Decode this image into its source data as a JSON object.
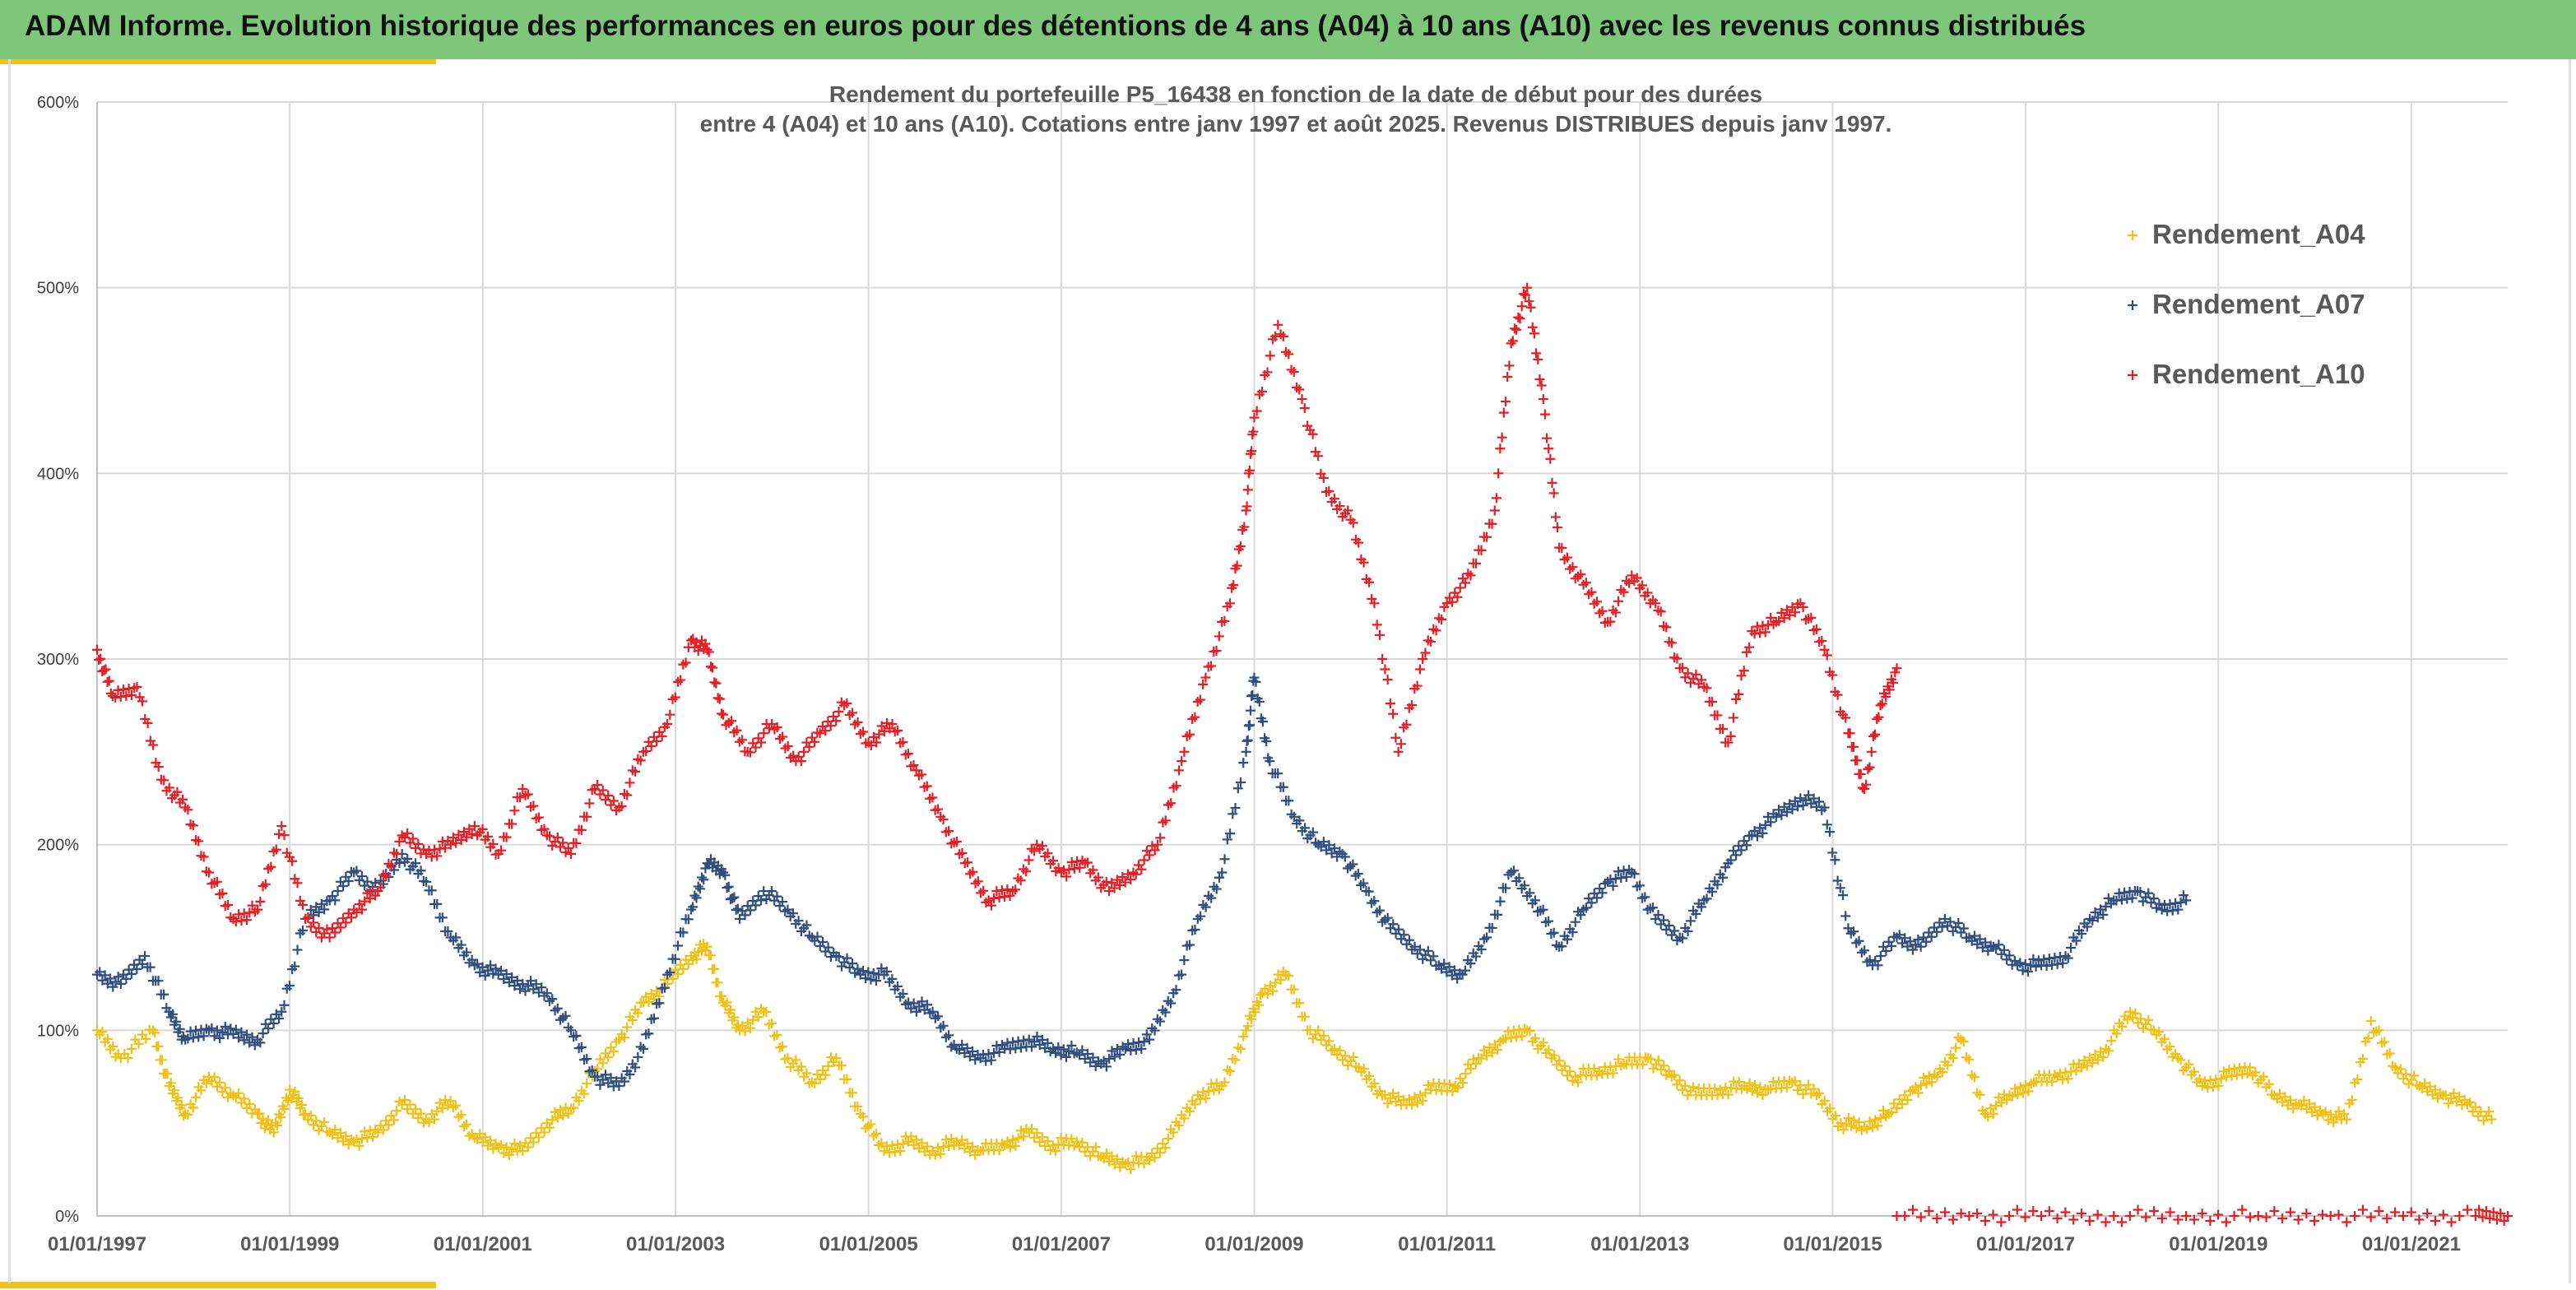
{
  "header": {
    "title": "ADAM Informe. Evolution historique des performances en euros pour des détentions de 4 ans (A04) à 10 ans (A10) avec les revenus connus distribués"
  },
  "colors": {
    "banner": "#7dc67a",
    "accent": "#f2c21c",
    "grid": "#d9d9d9"
  },
  "chart_data": {
    "type": "scatter",
    "title": "Rendement du portefeuille P5_16438 en fonction de la date de début pour des durées",
    "subtitle": "entre 4 (A04) et 10 ans (A10). Cotations entre janv 1997 et août 2025. Revenus DISTRIBUES depuis janv 1997.",
    "xlabel": "",
    "ylabel": "",
    "xlim": [
      "1997-01-01",
      "2022-01-01"
    ],
    "ylim": [
      0,
      600
    ],
    "x_ticks": [
      "01/01/1997",
      "01/01/1999",
      "01/01/2001",
      "01/01/2003",
      "01/01/2005",
      "01/01/2007",
      "01/01/2009",
      "01/01/2011",
      "01/01/2013",
      "01/01/2015",
      "01/01/2017",
      "01/01/2019",
      "01/01/2021"
    ],
    "y_ticks": [
      "0%",
      "100%",
      "200%",
      "300%",
      "400%",
      "500%",
      "600%"
    ],
    "grid": true,
    "legend_position": "top-right",
    "marker": "+",
    "series": [
      {
        "name": "Rendement_A04",
        "color": "#f2bf14",
        "points": [
          [
            "1997-01",
            100
          ],
          [
            "1997-04",
            85
          ],
          [
            "1997-08",
            100
          ],
          [
            "1997-10",
            70
          ],
          [
            "1997-12",
            55
          ],
          [
            "1998-03",
            75
          ],
          [
            "1998-06",
            65
          ],
          [
            "1998-09",
            55
          ],
          [
            "1998-11",
            45
          ],
          [
            "1999-01",
            68
          ],
          [
            "1999-03",
            55
          ],
          [
            "1999-06",
            45
          ],
          [
            "1999-09",
            40
          ],
          [
            "1999-12",
            45
          ],
          [
            "2000-03",
            60
          ],
          [
            "2000-06",
            52
          ],
          [
            "2000-09",
            62
          ],
          [
            "2000-12",
            42
          ],
          [
            "2001-03",
            37
          ],
          [
            "2001-06",
            35
          ],
          [
            "2001-09",
            50
          ],
          [
            "2001-12",
            58
          ],
          [
            "2002-03",
            78
          ],
          [
            "2002-06",
            95
          ],
          [
            "2002-09",
            115
          ],
          [
            "2002-12",
            125
          ],
          [
            "2003-03",
            140
          ],
          [
            "2003-05",
            145
          ],
          [
            "2003-07",
            115
          ],
          [
            "2003-09",
            100
          ],
          [
            "2003-12",
            110
          ],
          [
            "2004-03",
            85
          ],
          [
            "2004-06",
            72
          ],
          [
            "2004-09",
            85
          ],
          [
            "2004-12",
            55
          ],
          [
            "2005-03",
            35
          ],
          [
            "2005-06",
            40
          ],
          [
            "2005-09",
            35
          ],
          [
            "2005-12",
            40
          ],
          [
            "2006-03",
            35
          ],
          [
            "2006-06",
            38
          ],
          [
            "2006-09",
            45
          ],
          [
            "2006-12",
            38
          ],
          [
            "2007-03",
            40
          ],
          [
            "2007-06",
            32
          ],
          [
            "2007-09",
            28
          ],
          [
            "2007-12",
            30
          ],
          [
            "2008-03",
            45
          ],
          [
            "2008-06",
            65
          ],
          [
            "2008-09",
            70
          ],
          [
            "2008-12",
            100
          ],
          [
            "2009-02",
            120
          ],
          [
            "2009-05",
            130
          ],
          [
            "2009-08",
            100
          ],
          [
            "2009-11",
            90
          ],
          [
            "2010-02",
            80
          ],
          [
            "2010-05",
            65
          ],
          [
            "2010-08",
            60
          ],
          [
            "2010-11",
            68
          ],
          [
            "2011-02",
            70
          ],
          [
            "2011-05",
            85
          ],
          [
            "2011-08",
            95
          ],
          [
            "2011-11",
            100
          ],
          [
            "2012-02",
            85
          ],
          [
            "2012-05",
            75
          ],
          [
            "2012-08",
            78
          ],
          [
            "2012-11",
            82
          ],
          [
            "2013-02",
            85
          ],
          [
            "2013-05",
            75
          ],
          [
            "2013-08",
            65
          ],
          [
            "2013-11",
            68
          ],
          [
            "2014-02",
            70
          ],
          [
            "2014-05",
            68
          ],
          [
            "2014-08",
            72
          ],
          [
            "2014-11",
            65
          ],
          [
            "2015-02",
            50
          ],
          [
            "2015-05",
            48
          ],
          [
            "2015-08",
            55
          ],
          [
            "2015-11",
            68
          ],
          [
            "2016-02",
            75
          ],
          [
            "2016-05",
            95
          ],
          [
            "2016-08",
            55
          ],
          [
            "2016-11",
            65
          ],
          [
            "2017-02",
            72
          ],
          [
            "2017-05",
            75
          ],
          [
            "2017-08",
            80
          ],
          [
            "2017-11",
            90
          ],
          [
            "2018-02",
            110
          ],
          [
            "2018-05",
            100
          ],
          [
            "2018-08",
            85
          ],
          [
            "2018-11",
            70
          ],
          [
            "2019-02",
            75
          ],
          [
            "2019-05",
            80
          ],
          [
            "2019-08",
            65
          ],
          [
            "2019-11",
            60
          ],
          [
            "2020-02",
            55
          ],
          [
            "2020-05",
            52
          ],
          [
            "2020-08",
            105
          ],
          [
            "2020-11",
            80
          ],
          [
            "2021-02",
            70
          ],
          [
            "2021-05",
            65
          ],
          [
            "2021-08",
            60
          ],
          [
            "2021-11",
            52
          ]
        ]
      },
      {
        "name": "Rendement_A07",
        "color": "#2f4d7e",
        "points": [
          [
            "1997-01",
            130
          ],
          [
            "1997-04",
            125
          ],
          [
            "1997-07",
            140
          ],
          [
            "1997-10",
            110
          ],
          [
            "1997-12",
            95
          ],
          [
            "1998-03",
            100
          ],
          [
            "1998-06",
            98
          ],
          [
            "1998-09",
            95
          ],
          [
            "1998-12",
            110
          ],
          [
            "1999-03",
            160
          ],
          [
            "1999-06",
            170
          ],
          [
            "1999-09",
            185
          ],
          [
            "1999-12",
            175
          ],
          [
            "2000-03",
            195
          ],
          [
            "2000-06",
            180
          ],
          [
            "2000-09",
            150
          ],
          [
            "2000-12",
            135
          ],
          [
            "2001-03",
            130
          ],
          [
            "2001-06",
            125
          ],
          [
            "2001-09",
            120
          ],
          [
            "2001-12",
            100
          ],
          [
            "2002-03",
            75
          ],
          [
            "2002-06",
            70
          ],
          [
            "2002-09",
            90
          ],
          [
            "2002-12",
            130
          ],
          [
            "2003-03",
            165
          ],
          [
            "2003-05",
            190
          ],
          [
            "2003-07",
            185
          ],
          [
            "2003-09",
            160
          ],
          [
            "2003-12",
            175
          ],
          [
            "2004-03",
            165
          ],
          [
            "2004-06",
            150
          ],
          [
            "2004-09",
            140
          ],
          [
            "2004-12",
            130
          ],
          [
            "2005-03",
            130
          ],
          [
            "2005-06",
            115
          ],
          [
            "2005-09",
            110
          ],
          [
            "2005-12",
            90
          ],
          [
            "2006-03",
            85
          ],
          [
            "2006-06",
            90
          ],
          [
            "2006-09",
            95
          ],
          [
            "2006-12",
            90
          ],
          [
            "2007-03",
            88
          ],
          [
            "2007-06",
            82
          ],
          [
            "2007-09",
            90
          ],
          [
            "2007-12",
            95
          ],
          [
            "2008-03",
            120
          ],
          [
            "2008-06",
            160
          ],
          [
            "2008-09",
            185
          ],
          [
            "2008-12",
            250
          ],
          [
            "2009-01",
            290
          ],
          [
            "2009-03",
            245
          ],
          [
            "2009-06",
            215
          ],
          [
            "2009-09",
            200
          ],
          [
            "2009-12",
            195
          ],
          [
            "2010-03",
            175
          ],
          [
            "2010-06",
            155
          ],
          [
            "2010-09",
            145
          ],
          [
            "2010-12",
            135
          ],
          [
            "2011-03",
            130
          ],
          [
            "2011-06",
            150
          ],
          [
            "2011-09",
            185
          ],
          [
            "2011-12",
            170
          ],
          [
            "2012-03",
            145
          ],
          [
            "2012-06",
            165
          ],
          [
            "2012-09",
            180
          ],
          [
            "2012-12",
            185
          ],
          [
            "2013-03",
            160
          ],
          [
            "2013-06",
            150
          ],
          [
            "2013-09",
            170
          ],
          [
            "2013-12",
            190
          ],
          [
            "2014-03",
            205
          ],
          [
            "2014-06",
            215
          ],
          [
            "2014-09",
            225
          ],
          [
            "2014-12",
            220
          ],
          [
            "2015-03",
            155
          ],
          [
            "2015-06",
            135
          ],
          [
            "2015-09",
            150
          ],
          [
            "2015-12",
            145
          ],
          [
            "2016-03",
            160
          ],
          [
            "2016-06",
            150
          ],
          [
            "2016-09",
            145
          ],
          [
            "2016-12",
            135
          ],
          [
            "2017-03",
            135
          ],
          [
            "2017-06",
            140
          ],
          [
            "2017-09",
            160
          ],
          [
            "2017-12",
            170
          ],
          [
            "2018-03",
            175
          ],
          [
            "2018-06",
            165
          ],
          [
            "2018-09",
            170
          ]
        ]
      },
      {
        "name": "Rendement_A10",
        "color": "#e31e24",
        "points": [
          [
            "1997-01",
            305
          ],
          [
            "1997-03",
            280
          ],
          [
            "1997-06",
            285
          ],
          [
            "1997-09",
            235
          ],
          [
            "1997-12",
            220
          ],
          [
            "1998-03",
            185
          ],
          [
            "1998-06",
            160
          ],
          [
            "1998-09",
            165
          ],
          [
            "1998-12",
            210
          ],
          [
            "1999-03",
            160
          ],
          [
            "1999-06",
            150
          ],
          [
            "1999-09",
            165
          ],
          [
            "1999-12",
            175
          ],
          [
            "2000-03",
            205
          ],
          [
            "2000-06",
            195
          ],
          [
            "2000-09",
            200
          ],
          [
            "2000-12",
            210
          ],
          [
            "2001-03",
            195
          ],
          [
            "2001-06",
            230
          ],
          [
            "2001-09",
            205
          ],
          [
            "2001-12",
            195
          ],
          [
            "2002-03",
            230
          ],
          [
            "2002-06",
            220
          ],
          [
            "2002-09",
            250
          ],
          [
            "2002-12",
            265
          ],
          [
            "2003-03",
            310
          ],
          [
            "2003-05",
            305
          ],
          [
            "2003-07",
            270
          ],
          [
            "2003-10",
            250
          ],
          [
            "2004-01",
            265
          ],
          [
            "2004-04",
            245
          ],
          [
            "2004-07",
            260
          ],
          [
            "2004-10",
            275
          ],
          [
            "2005-01",
            255
          ],
          [
            "2005-04",
            265
          ],
          [
            "2005-07",
            240
          ],
          [
            "2005-10",
            215
          ],
          [
            "2006-01",
            190
          ],
          [
            "2006-04",
            170
          ],
          [
            "2006-07",
            175
          ],
          [
            "2006-10",
            200
          ],
          [
            "2007-01",
            185
          ],
          [
            "2007-04",
            190
          ],
          [
            "2007-07",
            175
          ],
          [
            "2007-10",
            185
          ],
          [
            "2008-01",
            200
          ],
          [
            "2008-04",
            245
          ],
          [
            "2008-07",
            290
          ],
          [
            "2008-10",
            330
          ],
          [
            "2008-12",
            380
          ],
          [
            "2009-01",
            430
          ],
          [
            "2009-04",
            480
          ],
          [
            "2009-07",
            440
          ],
          [
            "2009-10",
            390
          ],
          [
            "2010-01",
            375
          ],
          [
            "2010-04",
            330
          ],
          [
            "2010-07",
            250
          ],
          [
            "2010-10",
            300
          ],
          [
            "2011-01",
            330
          ],
          [
            "2011-04",
            345
          ],
          [
            "2011-07",
            380
          ],
          [
            "2011-09",
            470
          ],
          [
            "2011-11",
            500
          ],
          [
            "2012-01",
            440
          ],
          [
            "2012-03",
            360
          ],
          [
            "2012-06",
            340
          ],
          [
            "2012-09",
            320
          ],
          [
            "2012-12",
            345
          ],
          [
            "2013-03",
            330
          ],
          [
            "2013-06",
            295
          ],
          [
            "2013-09",
            285
          ],
          [
            "2013-12",
            255
          ],
          [
            "2014-03",
            315
          ],
          [
            "2014-06",
            320
          ],
          [
            "2014-09",
            330
          ],
          [
            "2014-12",
            305
          ],
          [
            "2015-03",
            260
          ],
          [
            "2015-05",
            230
          ],
          [
            "2015-07",
            275
          ],
          [
            "2015-09",
            295
          ]
        ]
      },
      {
        "name": "",
        "color": "#e31e24",
        "points": [
          [
            "2015-09",
            0
          ],
          [
            "2016-06",
            0
          ],
          [
            "2017-03",
            0
          ],
          [
            "2017-12",
            0
          ],
          [
            "2018-09",
            0
          ],
          [
            "2019-06",
            0
          ],
          [
            "2020-03",
            0
          ],
          [
            "2020-12",
            0
          ],
          [
            "2021-09",
            0
          ],
          [
            "2022-01",
            0
          ]
        ]
      }
    ]
  }
}
